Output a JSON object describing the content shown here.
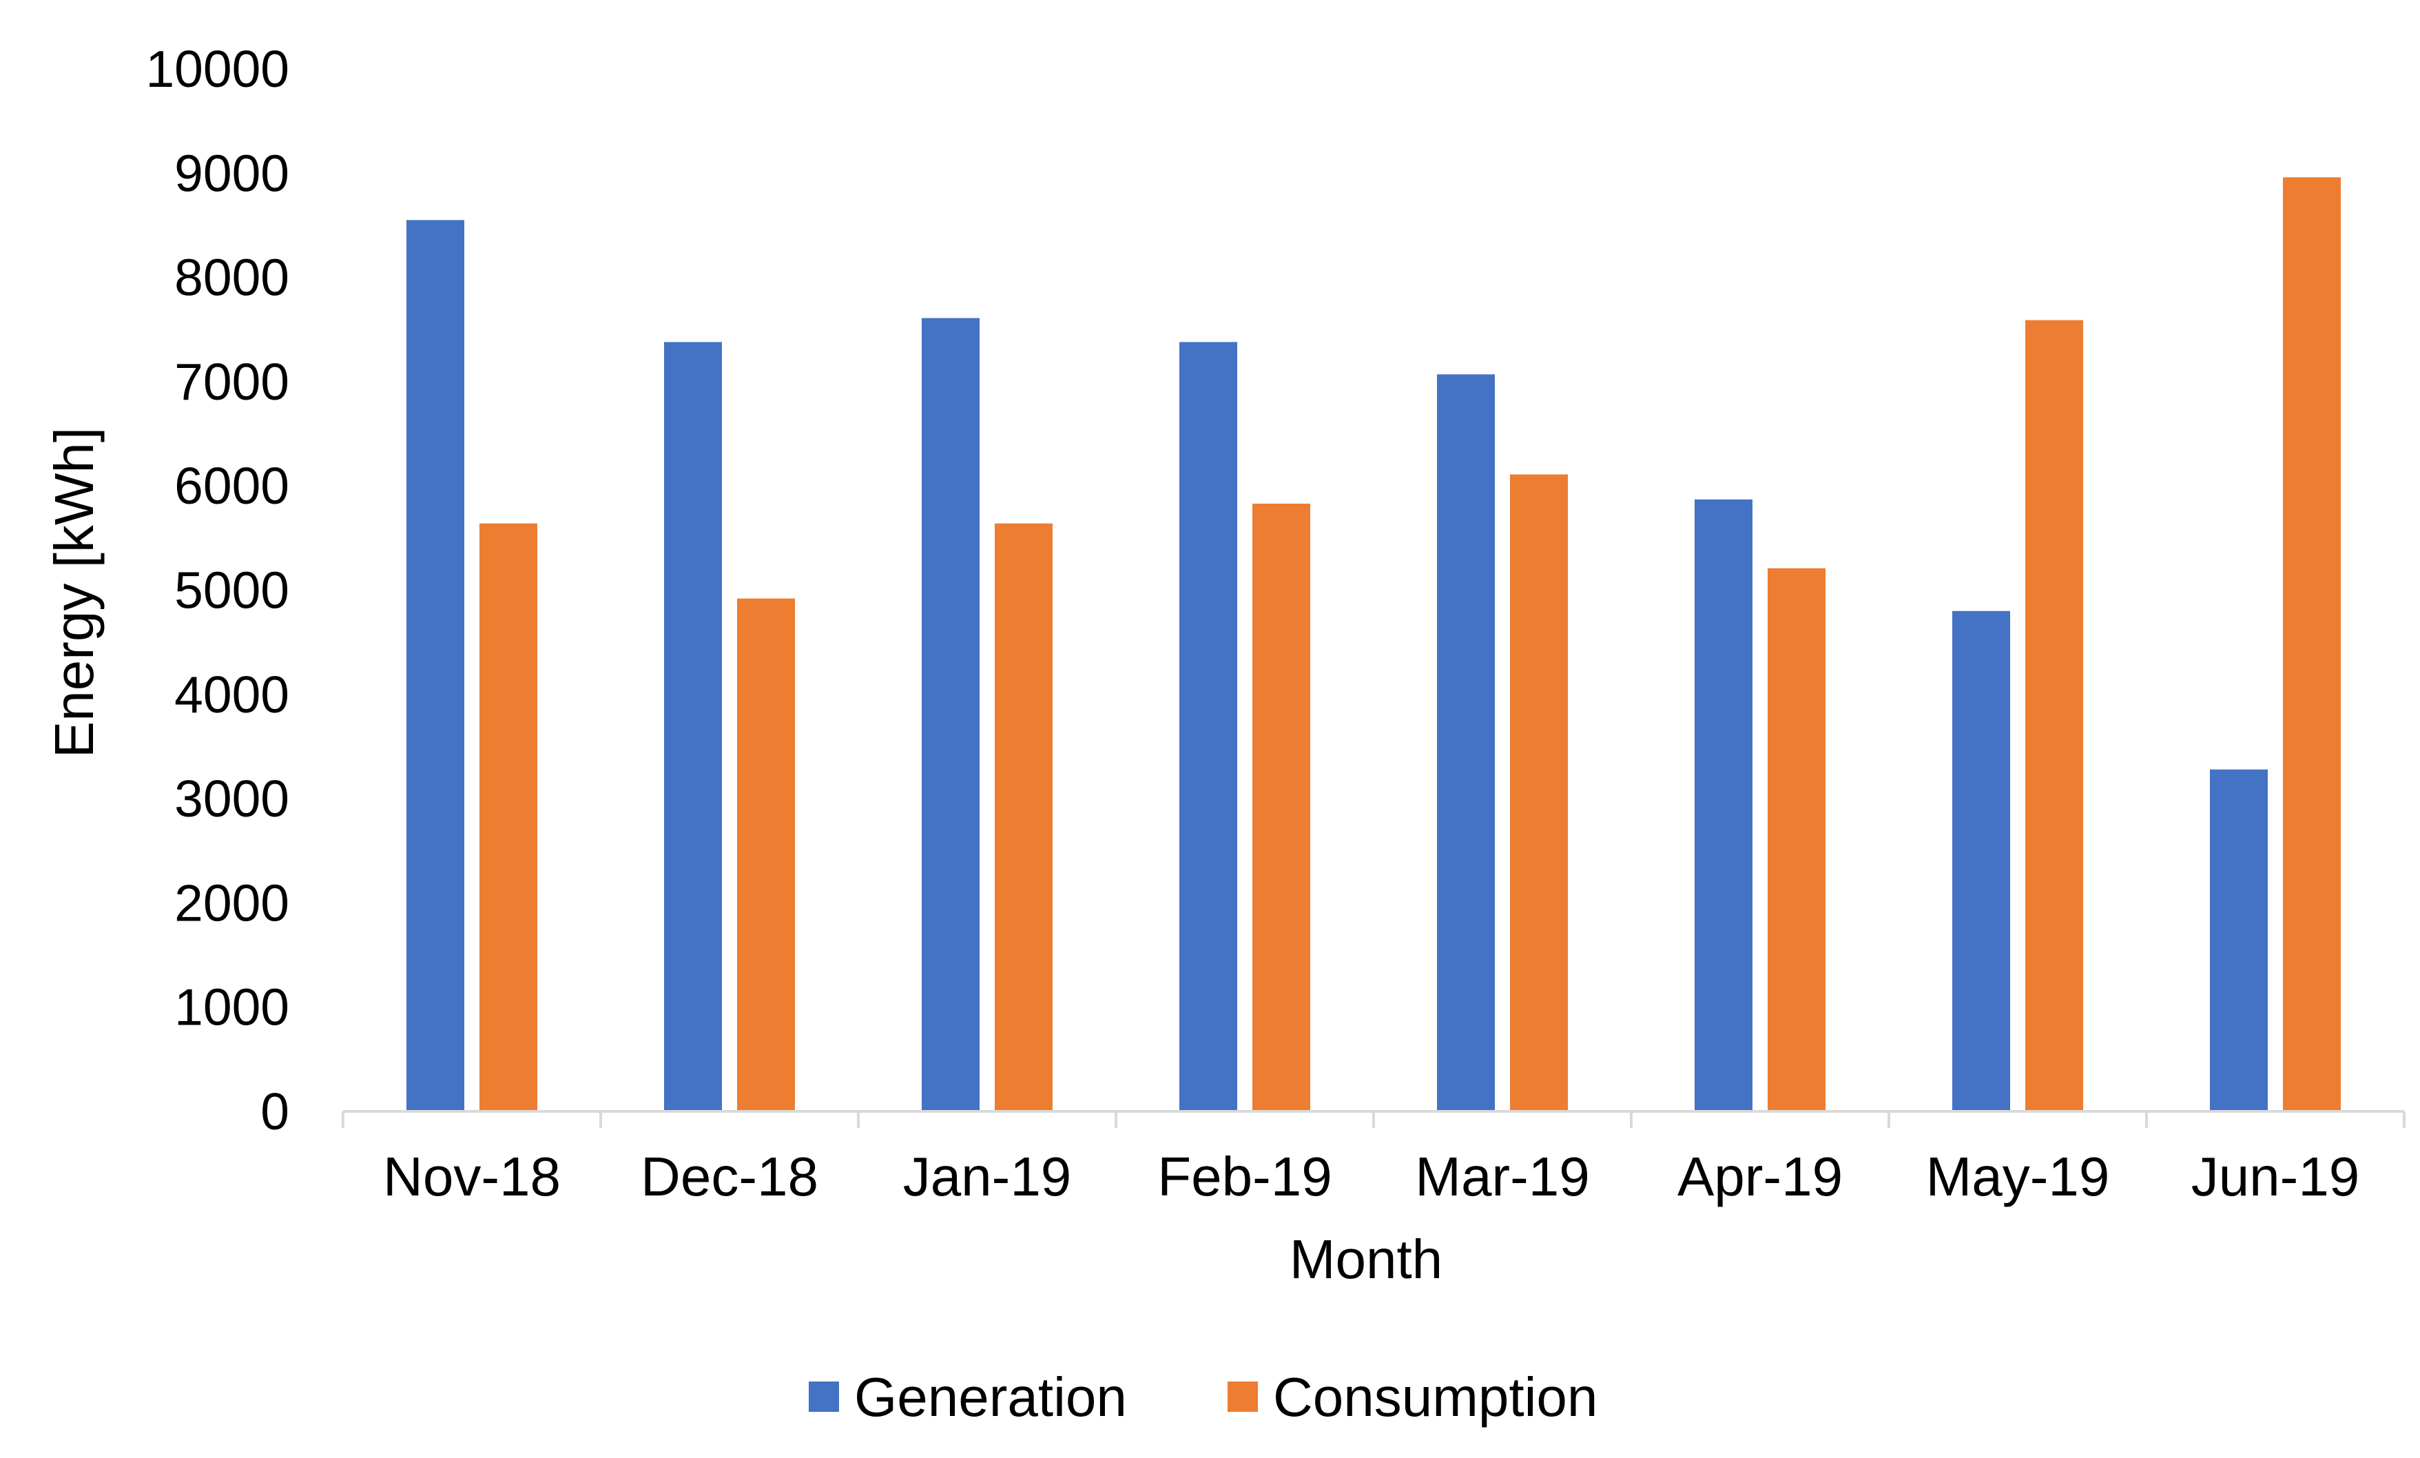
{
  "chart_data": {
    "type": "bar",
    "title": "",
    "xlabel": "Month",
    "ylabel": "Energy [kWh]",
    "ylim": [
      0,
      10000
    ],
    "yticks": [
      0,
      1000,
      2000,
      3000,
      4000,
      5000,
      6000,
      7000,
      8000,
      9000,
      10000
    ],
    "grid": false,
    "legend_position": "bottom",
    "categories": [
      "Nov-18",
      "Dec-18",
      "Jan-19",
      "Feb-19",
      "Mar-19",
      "Apr-19",
      "May-19",
      "Jun-19"
    ],
    "series": [
      {
        "name": "Generation",
        "color": "#4472C4",
        "values": [
          8550,
          7380,
          7610,
          7380,
          7070,
          5870,
          4800,
          3280
        ]
      },
      {
        "name": "Consumption",
        "color": "#ED7D31",
        "values": [
          5640,
          4920,
          5640,
          5830,
          6110,
          5210,
          7590,
          8960
        ]
      }
    ],
    "axis_color": "#D9D9D9"
  }
}
